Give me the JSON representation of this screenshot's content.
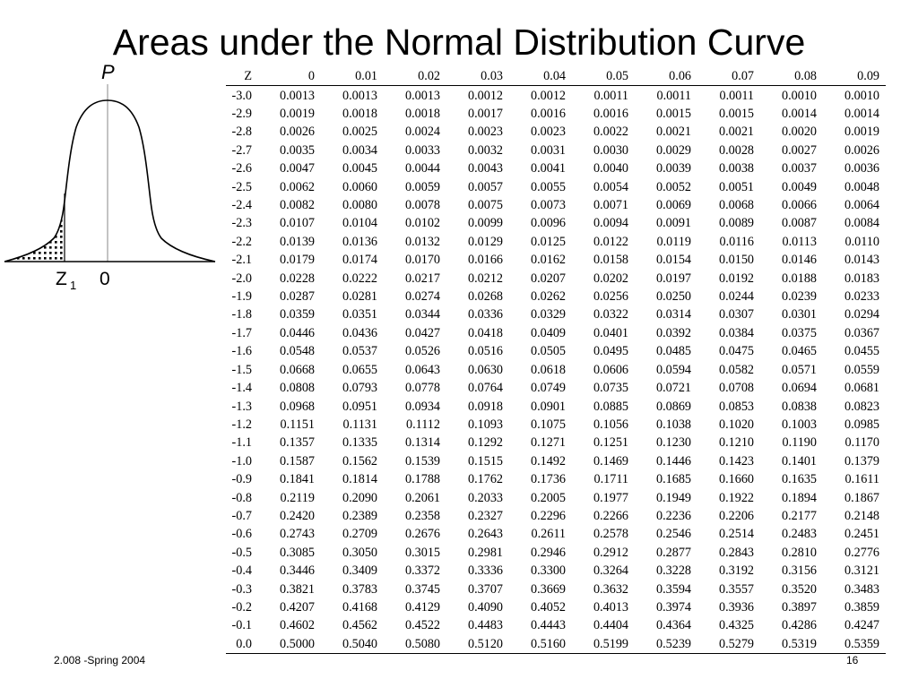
{
  "title": "Areas under the Normal Distribution Curve",
  "figure": {
    "p_label": "P",
    "z_label": "Z",
    "z_subscript": "1",
    "zero_label": "0"
  },
  "table": {
    "headers": [
      "Z",
      "0",
      "0.01",
      "0.02",
      "0.03",
      "0.04",
      "0.05",
      "0.06",
      "0.07",
      "0.08",
      "0.09"
    ],
    "rows": [
      [
        "-3.0",
        "0.0013",
        "0.0013",
        "0.0013",
        "0.0012",
        "0.0012",
        "0.0011",
        "0.0011",
        "0.0011",
        "0.0010",
        "0.0010"
      ],
      [
        "-2.9",
        "0.0019",
        "0.0018",
        "0.0018",
        "0.0017",
        "0.0016",
        "0.0016",
        "0.0015",
        "0.0015",
        "0.0014",
        "0.0014"
      ],
      [
        "-2.8",
        "0.0026",
        "0.0025",
        "0.0024",
        "0.0023",
        "0.0023",
        "0.0022",
        "0.0021",
        "0.0021",
        "0.0020",
        "0.0019"
      ],
      [
        "-2.7",
        "0.0035",
        "0.0034",
        "0.0033",
        "0.0032",
        "0.0031",
        "0.0030",
        "0.0029",
        "0.0028",
        "0.0027",
        "0.0026"
      ],
      [
        "-2.6",
        "0.0047",
        "0.0045",
        "0.0044",
        "0.0043",
        "0.0041",
        "0.0040",
        "0.0039",
        "0.0038",
        "0.0037",
        "0.0036"
      ],
      [
        "-2.5",
        "0.0062",
        "0.0060",
        "0.0059",
        "0.0057",
        "0.0055",
        "0.0054",
        "0.0052",
        "0.0051",
        "0.0049",
        "0.0048"
      ],
      [
        "-2.4",
        "0.0082",
        "0.0080",
        "0.0078",
        "0.0075",
        "0.0073",
        "0.0071",
        "0.0069",
        "0.0068",
        "0.0066",
        "0.0064"
      ],
      [
        "-2.3",
        "0.0107",
        "0.0104",
        "0.0102",
        "0.0099",
        "0.0096",
        "0.0094",
        "0.0091",
        "0.0089",
        "0.0087",
        "0.0084"
      ],
      [
        "-2.2",
        "0.0139",
        "0.0136",
        "0.0132",
        "0.0129",
        "0.0125",
        "0.0122",
        "0.0119",
        "0.0116",
        "0.0113",
        "0.0110"
      ],
      [
        "-2.1",
        "0.0179",
        "0.0174",
        "0.0170",
        "0.0166",
        "0.0162",
        "0.0158",
        "0.0154",
        "0.0150",
        "0.0146",
        "0.0143"
      ],
      [
        "-2.0",
        "0.0228",
        "0.0222",
        "0.0217",
        "0.0212",
        "0.0207",
        "0.0202",
        "0.0197",
        "0.0192",
        "0.0188",
        "0.0183"
      ],
      [
        "-1.9",
        "0.0287",
        "0.0281",
        "0.0274",
        "0.0268",
        "0.0262",
        "0.0256",
        "0.0250",
        "0.0244",
        "0.0239",
        "0.0233"
      ],
      [
        "-1.8",
        "0.0359",
        "0.0351",
        "0.0344",
        "0.0336",
        "0.0329",
        "0.0322",
        "0.0314",
        "0.0307",
        "0.0301",
        "0.0294"
      ],
      [
        "-1.7",
        "0.0446",
        "0.0436",
        "0.0427",
        "0.0418",
        "0.0409",
        "0.0401",
        "0.0392",
        "0.0384",
        "0.0375",
        "0.0367"
      ],
      [
        "-1.6",
        "0.0548",
        "0.0537",
        "0.0526",
        "0.0516",
        "0.0505",
        "0.0495",
        "0.0485",
        "0.0475",
        "0.0465",
        "0.0455"
      ],
      [
        "-1.5",
        "0.0668",
        "0.0655",
        "0.0643",
        "0.0630",
        "0.0618",
        "0.0606",
        "0.0594",
        "0.0582",
        "0.0571",
        "0.0559"
      ],
      [
        "-1.4",
        "0.0808",
        "0.0793",
        "0.0778",
        "0.0764",
        "0.0749",
        "0.0735",
        "0.0721",
        "0.0708",
        "0.0694",
        "0.0681"
      ],
      [
        "-1.3",
        "0.0968",
        "0.0951",
        "0.0934",
        "0.0918",
        "0.0901",
        "0.0885",
        "0.0869",
        "0.0853",
        "0.0838",
        "0.0823"
      ],
      [
        "-1.2",
        "0.1151",
        "0.1131",
        "0.1112",
        "0.1093",
        "0.1075",
        "0.1056",
        "0.1038",
        "0.1020",
        "0.1003",
        "0.0985"
      ],
      [
        "-1.1",
        "0.1357",
        "0.1335",
        "0.1314",
        "0.1292",
        "0.1271",
        "0.1251",
        "0.1230",
        "0.1210",
        "0.1190",
        "0.1170"
      ],
      [
        "-1.0",
        "0.1587",
        "0.1562",
        "0.1539",
        "0.1515",
        "0.1492",
        "0.1469",
        "0.1446",
        "0.1423",
        "0.1401",
        "0.1379"
      ],
      [
        "-0.9",
        "0.1841",
        "0.1814",
        "0.1788",
        "0.1762",
        "0.1736",
        "0.1711",
        "0.1685",
        "0.1660",
        "0.1635",
        "0.1611"
      ],
      [
        "-0.8",
        "0.2119",
        "0.2090",
        "0.2061",
        "0.2033",
        "0.2005",
        "0.1977",
        "0.1949",
        "0.1922",
        "0.1894",
        "0.1867"
      ],
      [
        "-0.7",
        "0.2420",
        "0.2389",
        "0.2358",
        "0.2327",
        "0.2296",
        "0.2266",
        "0.2236",
        "0.2206",
        "0.2177",
        "0.2148"
      ],
      [
        "-0.6",
        "0.2743",
        "0.2709",
        "0.2676",
        "0.2643",
        "0.2611",
        "0.2578",
        "0.2546",
        "0.2514",
        "0.2483",
        "0.2451"
      ],
      [
        "-0.5",
        "0.3085",
        "0.3050",
        "0.3015",
        "0.2981",
        "0.2946",
        "0.2912",
        "0.2877",
        "0.2843",
        "0.2810",
        "0.2776"
      ],
      [
        "-0.4",
        "0.3446",
        "0.3409",
        "0.3372",
        "0.3336",
        "0.3300",
        "0.3264",
        "0.3228",
        "0.3192",
        "0.3156",
        "0.3121"
      ],
      [
        "-0.3",
        "0.3821",
        "0.3783",
        "0.3745",
        "0.3707",
        "0.3669",
        "0.3632",
        "0.3594",
        "0.3557",
        "0.3520",
        "0.3483"
      ],
      [
        "-0.2",
        "0.4207",
        "0.4168",
        "0.4129",
        "0.4090",
        "0.4052",
        "0.4013",
        "0.3974",
        "0.3936",
        "0.3897",
        "0.3859"
      ],
      [
        "-0.1",
        "0.4602",
        "0.4562",
        "0.4522",
        "0.4483",
        "0.4443",
        "0.4404",
        "0.4364",
        "0.4325",
        "0.4286",
        "0.4247"
      ],
      [
        "0.0",
        "0.5000",
        "0.5040",
        "0.5080",
        "0.5120",
        "0.5160",
        "0.5199",
        "0.5239",
        "0.5279",
        "0.5319",
        "0.5359"
      ]
    ]
  },
  "footer": {
    "course": "2.008 -Spring 2004",
    "page_number": "16"
  }
}
